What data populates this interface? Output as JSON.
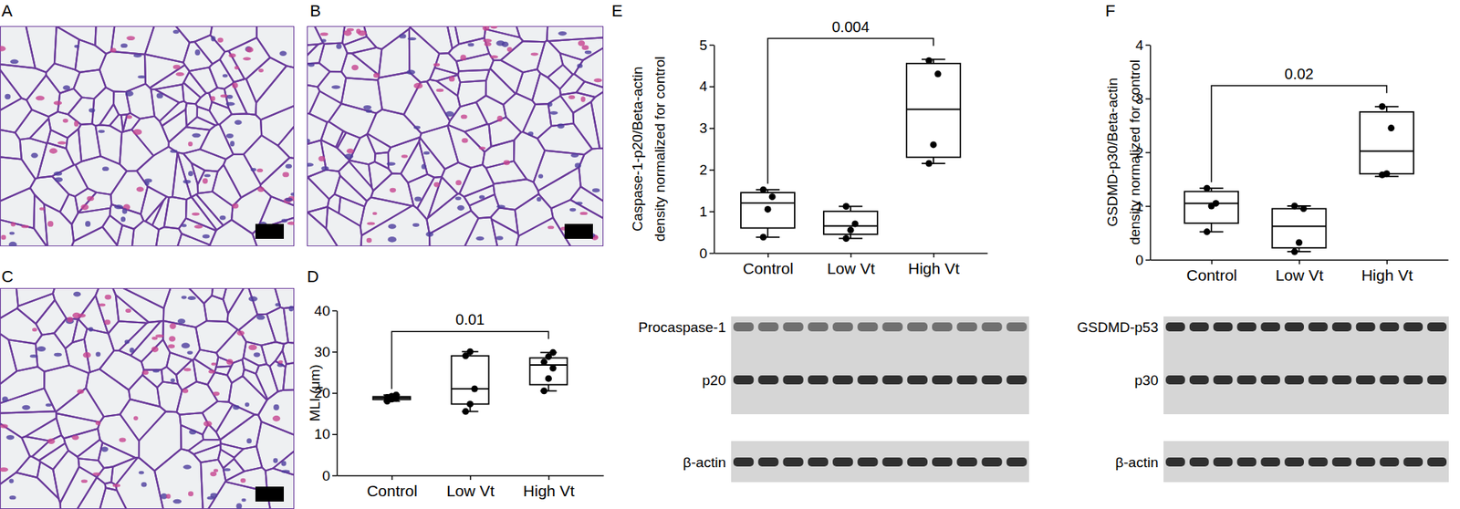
{
  "chart_data": [
    {
      "type": "box",
      "title": "D",
      "ylabel": [
        "MLI (μm)"
      ],
      "categories": [
        "Control",
        "Low Vt",
        "High Vt"
      ],
      "boxes": [
        {
          "min": 18,
          "q1": 18.4,
          "median": 18.8,
          "q3": 19.1,
          "max": 19.5
        },
        {
          "min": 15.5,
          "q1": 17.3,
          "median": 21,
          "q3": 29,
          "max": 30
        },
        {
          "min": 20.5,
          "q1": 22,
          "median": 26.8,
          "q3": 28.5,
          "max": 29.8
        }
      ],
      "points": [
        [
          18,
          18.5,
          18.7,
          18.9,
          19.2,
          19.5
        ],
        [
          15.5,
          17.3,
          21,
          29,
          30
        ],
        [
          20.5,
          23.5,
          26,
          27.5,
          28.8,
          29.8
        ]
      ],
      "ylim": [
        0,
        40
      ],
      "yticks": [
        0,
        10,
        20,
        30,
        40
      ],
      "annotations": [
        {
          "text": "0.01",
          "between": [
            "Control",
            "High Vt"
          ]
        }
      ]
    },
    {
      "type": "box",
      "title": "E",
      "ylabel": [
        "Caspase-1-p20/Beta-actin",
        "density normalized for control"
      ],
      "categories": [
        "Control",
        "Low Vt",
        "High Vt"
      ],
      "boxes": [
        {
          "min": 0.38,
          "q1": 0.6,
          "median": 1.2,
          "q3": 1.45,
          "max": 1.52
        },
        {
          "min": 0.35,
          "q1": 0.45,
          "median": 0.65,
          "q3": 1.0,
          "max": 1.12
        },
        {
          "min": 2.15,
          "q1": 2.3,
          "median": 3.45,
          "q3": 4.55,
          "max": 4.65
        }
      ],
      "points": [
        [
          0.38,
          1.05,
          1.35,
          1.52
        ],
        [
          0.35,
          0.55,
          0.7,
          1.12
        ],
        [
          2.15,
          2.6,
          4.3,
          4.62
        ]
      ],
      "ylim": [
        0,
        5
      ],
      "yticks": [
        0,
        1,
        2,
        3,
        4,
        5
      ],
      "annotations": [
        {
          "text": "0.004",
          "between": [
            "Control",
            "High Vt"
          ]
        }
      ]
    },
    {
      "type": "box",
      "title": "F",
      "ylabel": [
        "GSDMD-p30/Beta-actin",
        "density normalized for control"
      ],
      "categories": [
        "Control",
        "Low Vt",
        "High Vt"
      ],
      "boxes": [
        {
          "min": 0.52,
          "q1": 0.68,
          "median": 1.05,
          "q3": 1.27,
          "max": 1.33
        },
        {
          "min": 0.15,
          "q1": 0.22,
          "median": 0.62,
          "q3": 0.95,
          "max": 1.0
        },
        {
          "min": 1.55,
          "q1": 1.6,
          "median": 2.02,
          "q3": 2.75,
          "max": 2.85
        }
      ],
      "points": [
        [
          0.52,
          1.0,
          1.05,
          1.33
        ],
        [
          0.15,
          0.32,
          0.95,
          1.0
        ],
        [
          1.58,
          1.6,
          2.45,
          2.85
        ]
      ],
      "ylim": [
        0,
        4
      ],
      "yticks": [
        0,
        1,
        2,
        3,
        4
      ],
      "annotations": [
        {
          "text": "0.02",
          "between": [
            "Control",
            "High Vt"
          ]
        }
      ]
    }
  ],
  "images": [
    {
      "label": "A"
    },
    {
      "label": "B"
    },
    {
      "label": "C"
    }
  ],
  "blots": [
    {
      "labels": [
        "Procaspase-1",
        "p20",
        "β-actin"
      ]
    },
    {
      "labels": [
        "GSDMD-p53",
        "p30",
        "β-actin"
      ]
    }
  ]
}
